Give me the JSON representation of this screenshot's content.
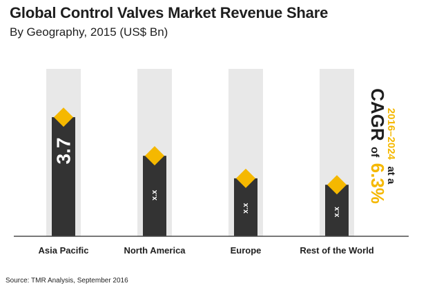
{
  "title": "Global Control Valves Market Revenue Share",
  "subtitle": "By Geography, 2015 (US$ Bn)",
  "source": "Source: TMR Analysis, September 2016",
  "colors": {
    "bar": "#333333",
    "track": "#e8e8e8",
    "marker": "#f5b800",
    "axis": "#4a4a4a",
    "cagr_dark": "#1e1e1e",
    "cagr_accent": "#f5b800"
  },
  "cagr": {
    "word": "CAGR",
    "of": "of",
    "value": "6.3%",
    "period": "2016–2024",
    "suffix": "at a"
  },
  "chart_data": {
    "type": "bar",
    "categories": [
      "Asia Pacific",
      "North America",
      "Europe",
      "Rest of the World"
    ],
    "values": [
      3.7,
      2.5,
      1.8,
      1.6
    ],
    "labels": [
      "3.7",
      "x.x",
      "x.x",
      "x.x"
    ],
    "ylim": [
      0,
      5.2
    ],
    "grid": false,
    "legend": "none",
    "title": "Global Control Valves Market Revenue Share",
    "subtitle": "By Geography, 2015 (US$ Bn)"
  }
}
